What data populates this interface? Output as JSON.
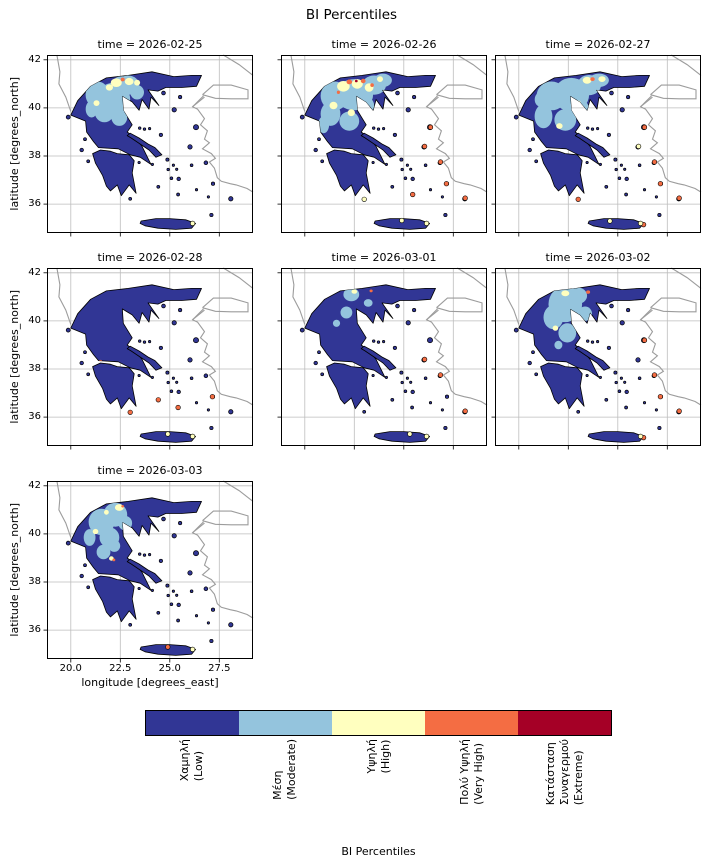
{
  "figure": {
    "suptitle": "BI Percentiles",
    "xlabel": "longitude [degrees_east]",
    "ylabel": "latitude [degrees_north]"
  },
  "axes": {
    "xtick_labels": [
      "20.0",
      "22.5",
      "25.0",
      "27.5"
    ],
    "xtick_values": [
      20.0,
      22.5,
      25.0,
      27.5
    ],
    "ytick_labels": [
      "42",
      "40",
      "38",
      "36"
    ],
    "ytick_values": [
      42,
      40,
      38,
      36
    ]
  },
  "colors": {
    "low": "#313695",
    "moderate": "#94c4dd",
    "high": "#ffffbf",
    "very_high": "#f46d43",
    "extreme": "#a50026",
    "grid": "#bdbdbd",
    "coastline": "#9c9c9c",
    "outline": "#000000"
  },
  "colorbar": {
    "title": "BI Percentiles",
    "categories": [
      {
        "lines": [
          "Χαμηλή",
          "(Low)"
        ],
        "color": "#313695"
      },
      {
        "lines": [
          "Μέση",
          "(Moderate)"
        ],
        "color": "#94c4dd"
      },
      {
        "lines": [
          "Υψηλή",
          "(High)"
        ],
        "color": "#ffffbf"
      },
      {
        "lines": [
          "Πολύ Υψηλή",
          "(Very High)"
        ],
        "color": "#f46d43"
      },
      {
        "lines": [
          "Κατάσταση",
          "Συναγερμού",
          "(Extreme)"
        ],
        "color": "#a50026"
      }
    ]
  },
  "patch_format": "[category, lon, lat, rx_deg, ry_deg]; spots: [category, lon, lat]",
  "panels": [
    {
      "title": "time = 2026-02-25",
      "patches": [
        [
          "moderate",
          21.35,
          40.55,
          0.6,
          0.55
        ],
        [
          "moderate",
          22.15,
          40.35,
          0.85,
          0.7
        ],
        [
          "moderate",
          22.9,
          40.95,
          0.55,
          0.4
        ],
        [
          "moderate",
          21.7,
          39.85,
          0.5,
          0.45
        ],
        [
          "moderate",
          22.45,
          39.6,
          0.4,
          0.35
        ],
        [
          "moderate",
          23.35,
          40.65,
          0.35,
          0.3
        ],
        [
          "moderate",
          21.05,
          39.95,
          0.3,
          0.35
        ],
        [
          "moderate",
          22.6,
          41.1,
          0.45,
          0.22
        ],
        [
          "high",
          22.3,
          41.05,
          0.28,
          0.18
        ],
        [
          "high",
          22.95,
          41.1,
          0.22,
          0.15
        ],
        [
          "high",
          21.95,
          40.85,
          0.18,
          0.13
        ],
        [
          "high",
          23.35,
          41.05,
          0.15,
          0.12
        ],
        [
          "high",
          21.3,
          40.2,
          0.15,
          0.12
        ],
        [
          "very_high",
          22.62,
          41.18,
          0.1,
          0.08
        ]
      ],
      "spots": [
        [
          "high",
          26.15,
          35.2
        ]
      ]
    },
    {
      "title": "time = 2026-02-26",
      "patches": [
        [
          "moderate",
          21.5,
          40.5,
          0.7,
          0.6
        ],
        [
          "moderate",
          22.5,
          40.55,
          0.95,
          0.65
        ],
        [
          "moderate",
          23.5,
          40.95,
          0.6,
          0.4
        ],
        [
          "moderate",
          21.3,
          39.75,
          0.5,
          0.5
        ],
        [
          "moderate",
          22.25,
          39.45,
          0.5,
          0.4
        ],
        [
          "moderate",
          23.95,
          41.15,
          0.45,
          0.28
        ],
        [
          "moderate",
          20.95,
          39.3,
          0.28,
          0.35
        ],
        [
          "moderate",
          23.1,
          40.1,
          0.4,
          0.35
        ],
        [
          "high",
          21.95,
          40.9,
          0.32,
          0.22
        ],
        [
          "high",
          22.65,
          41.0,
          0.28,
          0.2
        ],
        [
          "high",
          23.25,
          40.85,
          0.22,
          0.18
        ],
        [
          "high",
          21.45,
          40.1,
          0.2,
          0.16
        ],
        [
          "high",
          22.35,
          39.8,
          0.18,
          0.14
        ],
        [
          "high",
          23.8,
          41.2,
          0.15,
          0.12
        ],
        [
          "very_high",
          22.25,
          41.08,
          0.14,
          0.1
        ],
        [
          "very_high",
          22.95,
          41.12,
          0.12,
          0.09
        ],
        [
          "very_high",
          23.4,
          40.95,
          0.09,
          0.08
        ],
        [
          "very_high",
          21.7,
          40.65,
          0.08,
          0.07
        ],
        [
          "extreme",
          22.6,
          41.12,
          0.07,
          0.055
        ]
      ],
      "spots": [
        [
          "very_high",
          26.35,
          39.2
        ],
        [
          "very_high",
          26.05,
          38.4
        ],
        [
          "very_high",
          26.85,
          37.75
        ],
        [
          "very_high",
          28.1,
          36.25
        ],
        [
          "very_high",
          25.45,
          36.4
        ],
        [
          "very_high",
          27.15,
          36.85
        ],
        [
          "high",
          26.15,
          35.2
        ],
        [
          "high",
          24.9,
          35.32
        ],
        [
          "high",
          23.0,
          36.2
        ]
      ]
    },
    {
      "title": "time = 2026-02-27",
      "patches": [
        [
          "moderate",
          21.65,
          40.5,
          0.75,
          0.6
        ],
        [
          "moderate",
          22.65,
          40.55,
          0.9,
          0.7
        ],
        [
          "moderate",
          23.55,
          40.95,
          0.6,
          0.42
        ],
        [
          "moderate",
          22.35,
          39.5,
          0.55,
          0.45
        ],
        [
          "moderate",
          21.25,
          39.65,
          0.45,
          0.5
        ],
        [
          "moderate",
          24.05,
          41.15,
          0.5,
          0.28
        ],
        [
          "moderate",
          23.05,
          39.95,
          0.5,
          0.4
        ],
        [
          "moderate",
          21.1,
          40.35,
          0.3,
          0.3
        ],
        [
          "high",
          23.45,
          41.15,
          0.22,
          0.14
        ],
        [
          "high",
          24.2,
          41.2,
          0.18,
          0.12
        ],
        [
          "high",
          22.05,
          39.25,
          0.16,
          0.12
        ],
        [
          "high",
          23.0,
          40.2,
          0.14,
          0.11
        ],
        [
          "very_high",
          23.72,
          41.2,
          0.11,
          0.08
        ]
      ],
      "spots": [
        [
          "very_high",
          26.35,
          39.2
        ],
        [
          "very_high",
          26.85,
          37.75
        ],
        [
          "very_high",
          28.1,
          36.25
        ],
        [
          "very_high",
          27.15,
          36.85
        ],
        [
          "very_high",
          23.0,
          36.2
        ],
        [
          "very_high",
          26.3,
          35.15
        ],
        [
          "high",
          26.05,
          38.4
        ],
        [
          "high",
          26.15,
          35.2
        ],
        [
          "high",
          24.6,
          35.3
        ]
      ]
    },
    {
      "title": "time = 2026-02-28",
      "patches": [
        [
          "very_high",
          21.5,
          38.32,
          0.08,
          0.06
        ]
      ],
      "spots": [
        [
          "very_high",
          24.42,
          36.72
        ],
        [
          "very_high",
          25.42,
          36.4
        ],
        [
          "very_high",
          23.0,
          36.2
        ],
        [
          "very_high",
          27.15,
          36.85
        ],
        [
          "high",
          26.15,
          35.2
        ],
        [
          "high",
          24.9,
          35.3
        ]
      ]
    },
    {
      "title": "time = 2026-03-01",
      "patches": [
        [
          "moderate",
          22.35,
          41.1,
          0.4,
          0.28
        ],
        [
          "moderate",
          22.1,
          40.35,
          0.3,
          0.25
        ],
        [
          "moderate",
          23.2,
          40.75,
          0.22,
          0.16
        ],
        [
          "moderate",
          21.6,
          39.9,
          0.18,
          0.15
        ],
        [
          "high",
          22.5,
          41.22,
          0.14,
          0.09
        ],
        [
          "very_high",
          23.35,
          41.25,
          0.08,
          0.06
        ]
      ],
      "spots": [
        [
          "very_high",
          26.05,
          38.4
        ],
        [
          "very_high",
          26.85,
          37.75
        ],
        [
          "very_high",
          28.1,
          36.25
        ],
        [
          "high",
          26.15,
          35.2
        ],
        [
          "high",
          25.3,
          35.3
        ]
      ]
    },
    {
      "title": "time = 2026-03-02",
      "patches": [
        [
          "moderate",
          22.35,
          40.7,
          0.85,
          0.75
        ],
        [
          "moderate",
          21.75,
          40.15,
          0.5,
          0.5
        ],
        [
          "moderate",
          22.95,
          41.05,
          0.5,
          0.35
        ],
        [
          "moderate",
          22.45,
          39.5,
          0.45,
          0.4
        ],
        [
          "moderate",
          23.35,
          40.3,
          0.35,
          0.3
        ],
        [
          "moderate",
          22.0,
          39.0,
          0.2,
          0.18
        ],
        [
          "high",
          22.35,
          41.15,
          0.2,
          0.12
        ],
        [
          "high",
          21.85,
          39.7,
          0.14,
          0.11
        ],
        [
          "very_high",
          23.5,
          41.2,
          0.1,
          0.07
        ]
      ],
      "spots": [
        [
          "very_high",
          26.35,
          39.2
        ],
        [
          "very_high",
          28.1,
          36.25
        ],
        [
          "very_high",
          27.15,
          36.85
        ],
        [
          "very_high",
          26.85,
          37.75
        ],
        [
          "very_high",
          26.3,
          35.15
        ],
        [
          "high",
          26.15,
          35.2
        ]
      ]
    },
    {
      "title": "time = 2026-03-03",
      "patches": [
        [
          "moderate",
          21.55,
          40.5,
          0.65,
          0.55
        ],
        [
          "moderate",
          22.25,
          40.8,
          0.6,
          0.5
        ],
        [
          "moderate",
          21.95,
          39.85,
          0.5,
          0.42
        ],
        [
          "moderate",
          20.95,
          39.85,
          0.3,
          0.35
        ],
        [
          "moderate",
          22.75,
          40.45,
          0.35,
          0.3
        ],
        [
          "moderate",
          21.65,
          39.25,
          0.35,
          0.3
        ],
        [
          "moderate",
          22.2,
          39.5,
          0.3,
          0.25
        ],
        [
          "high",
          22.45,
          41.1,
          0.22,
          0.14
        ],
        [
          "high",
          21.25,
          40.1,
          0.14,
          0.11
        ],
        [
          "high",
          22.05,
          38.98,
          0.12,
          0.09
        ],
        [
          "high",
          21.8,
          40.9,
          0.12,
          0.1
        ],
        [
          "very_high",
          22.18,
          38.92,
          0.07,
          0.06
        ],
        [
          "very_high",
          22.62,
          41.15,
          0.07,
          0.05
        ]
      ],
      "spots": [
        [
          "high",
          26.15,
          35.2
        ],
        [
          "very_high",
          24.9,
          35.3
        ]
      ]
    }
  ],
  "chart_data": {
    "type": "heatmap",
    "subtype": "categorical-map-facets",
    "suptitle": "BI Percentiles",
    "facet_titles": [
      "time = 2026-02-25",
      "time = 2026-02-26",
      "time = 2026-02-27",
      "time = 2026-02-28",
      "time = 2026-03-01",
      "time = 2026-03-02",
      "time = 2026-03-03"
    ],
    "xlabel": "longitude [degrees_east]",
    "ylabel": "latitude [degrees_north]",
    "xlim": [
      18.8,
      29.2
    ],
    "ylim": [
      34.8,
      42.2
    ],
    "xticks": [
      20.0,
      22.5,
      25.0,
      27.5
    ],
    "yticks": [
      36,
      38,
      40,
      42
    ],
    "grid": true,
    "legend_position": "bottom-horizontal-colorbar",
    "colorbar_label": "BI Percentiles",
    "categories": [
      {
        "label": "Χαμηλή (Low)",
        "color": "#313695"
      },
      {
        "label": "Μέση (Moderate)",
        "color": "#94c4dd"
      },
      {
        "label": "Υψηλή (High)",
        "color": "#ffffbf"
      },
      {
        "label": "Πολύ Υψηλή (Very High)",
        "color": "#f46d43"
      },
      {
        "label": "Κατάσταση Συναγερμού (Extreme)",
        "color": "#a50026"
      }
    ],
    "reading": "Seven daily maps of Greece colored by BI percentile category. Base category is Low (navy) everywhere; Moderate (light blue) and High (pale yellow) patches concentrate over northern Greece (Macedonia/Epirus/Thessaly) on 02-25, 02-26, 02-27, 03-02 and 03-03, with small Very High/Extreme specks near the northern border on 02-26. Scattered Very High (orange) spots appear on eastern Aegean islands (Lesbos, Chios, Samos, Kos, Rhodes) and High/Very High spots on Crete on most days; 02-28 and 03-01 are almost entirely Low."
  }
}
